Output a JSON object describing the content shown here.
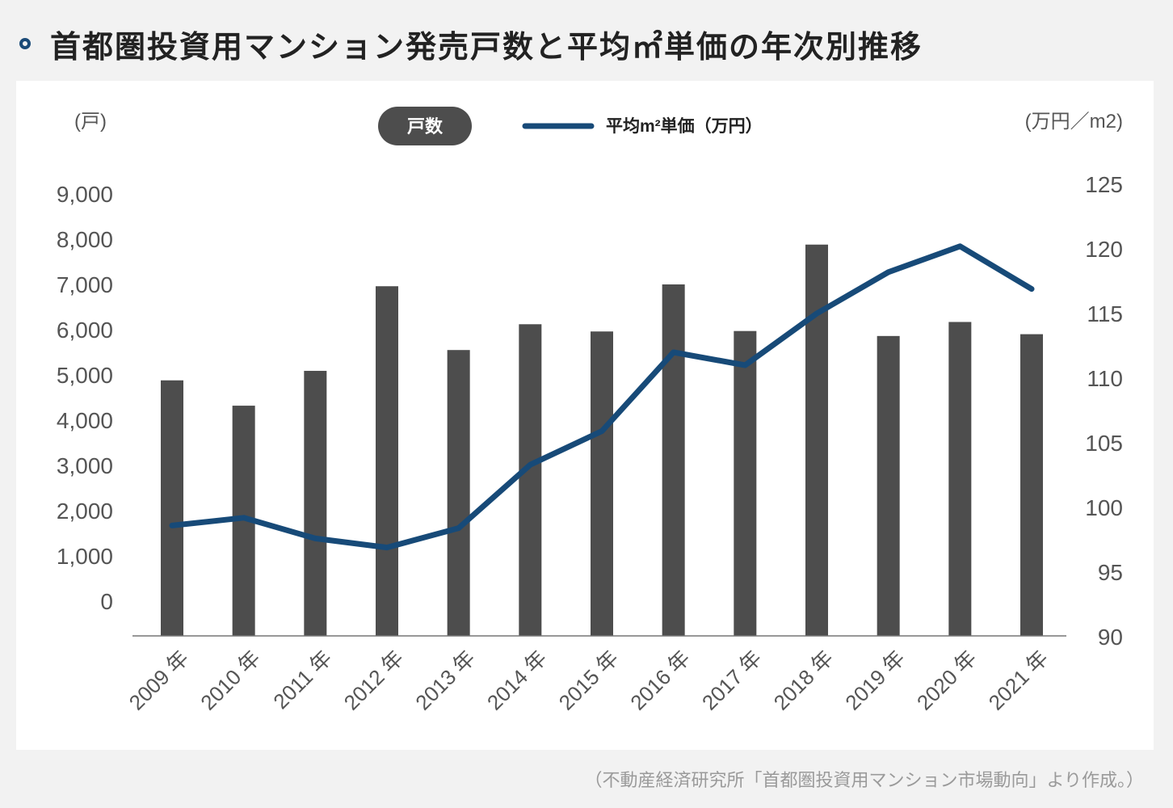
{
  "title": "首都圏投資用マンション発売戸数と平均㎡単価の年次別推移",
  "source": "（不動産経済研究所「首都圏投資用マンション市場動向」より作成。）",
  "colors": {
    "bar": "#4d4d4d",
    "line": "#174a78",
    "title_bullet": "#1b4b78"
  },
  "chart_data": {
    "type": "bar+line",
    "y_left_label": "(戸)",
    "y_right_label": "(万円／m2)",
    "legend": {
      "bar_label": "戸数",
      "line_label": "平均m²単価（万円）",
      "placement": "top-center"
    },
    "categories": [
      "2009 年",
      "2010 年",
      "2011 年",
      "2012 年",
      "2013 年",
      "2014 年",
      "2015 年",
      "2016 年",
      "2017 年",
      "2018 年",
      "2019 年",
      "2020 年",
      "2021 年"
    ],
    "y_left_ticks": [
      "0",
      "1,000",
      "2,000",
      "3,000",
      "4,000",
      "5,000",
      "6,000",
      "7,000",
      "8,000",
      "9,000"
    ],
    "y_right_ticks": [
      "90",
      "95",
      "100",
      "105",
      "110",
      "115",
      "120",
      "125"
    ],
    "y_left_range": [
      -750,
      9000
    ],
    "y_right_range": [
      90,
      125
    ],
    "grid": false,
    "series": [
      {
        "name": "戸数",
        "type": "bar",
        "values": [
          4880,
          4320,
          5090,
          6960,
          5550,
          6120,
          5960,
          7000,
          5970,
          7880,
          5860,
          6170,
          5900
        ]
      },
      {
        "name": "平均m²単価（万円）",
        "type": "line",
        "values": [
          98.6,
          99.2,
          97.6,
          96.9,
          98.4,
          103.3,
          105.9,
          112.0,
          111.0,
          115.0,
          118.2,
          120.2,
          116.9
        ]
      }
    ]
  }
}
